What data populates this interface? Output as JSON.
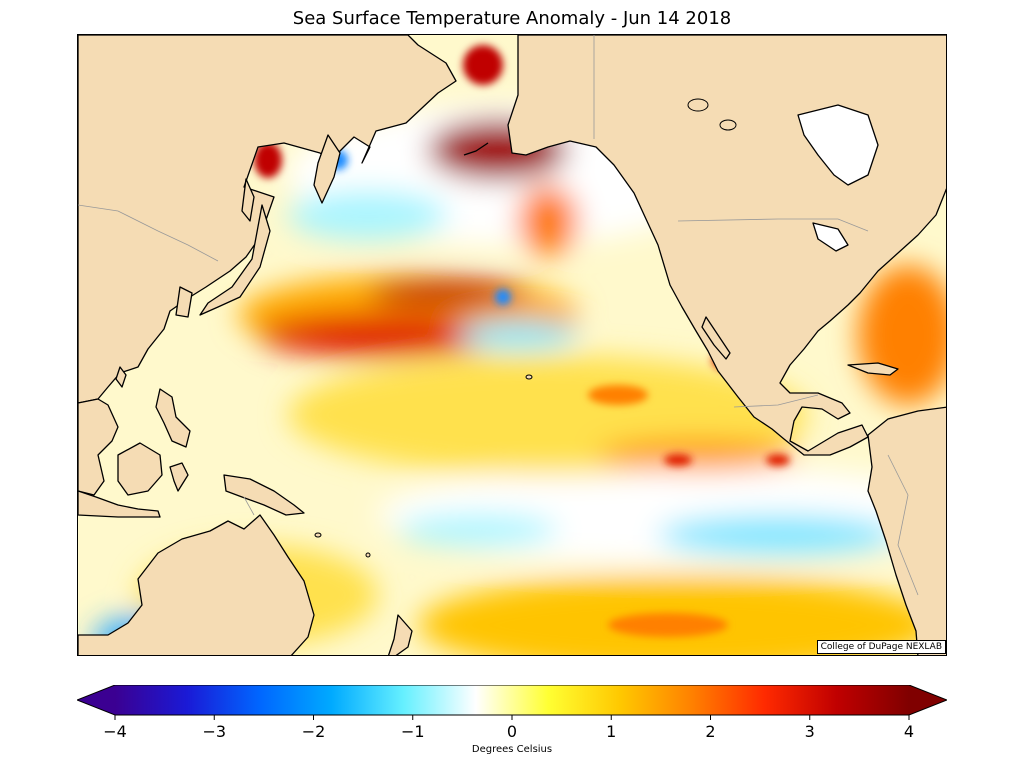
{
  "title": "Sea Surface Temperature Anomaly - Jun 14 2018",
  "credit": "College of DuPage NEXLAB",
  "colorbar": {
    "label": "Degrees Celsius",
    "min": -4,
    "max": 4,
    "ticks": [
      "−4",
      "−3",
      "−2",
      "−1",
      "0",
      "1",
      "2",
      "3",
      "4"
    ],
    "colors": [
      "#3b0092",
      "#1a1ad6",
      "#0066ff",
      "#00aaff",
      "#66f0ff",
      "#ffffff",
      "#ffff33",
      "#ffc800",
      "#ff8000",
      "#ff2a00",
      "#c00000",
      "#800000"
    ]
  },
  "map": {
    "ocean_color": "#ffffff",
    "land_color": "#f5dcb4",
    "coastline_color": "#000000",
    "border_color": "#999999"
  }
}
